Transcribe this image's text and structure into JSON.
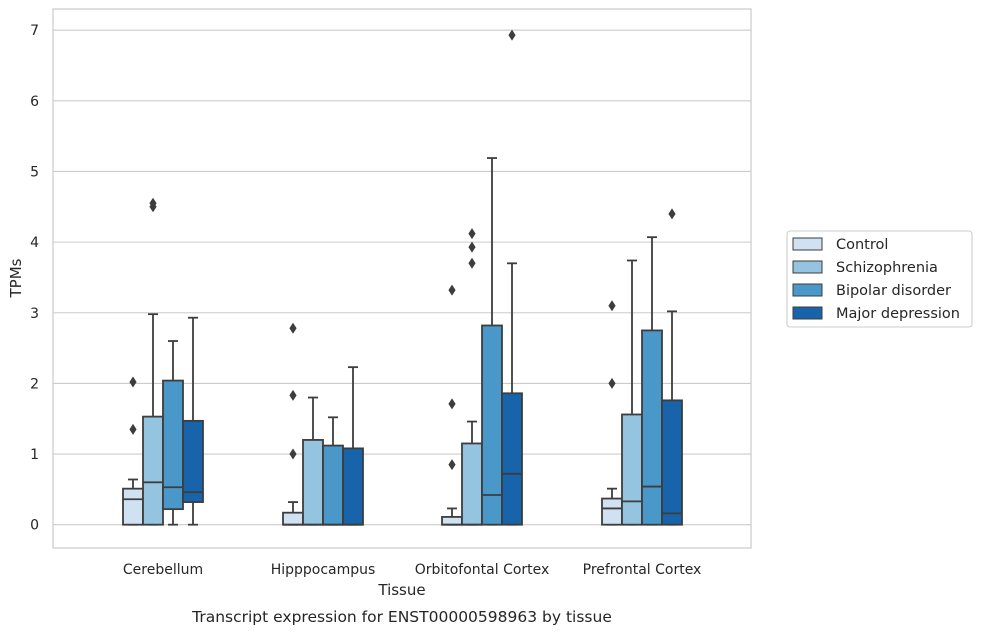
{
  "chart_data": {
    "type": "box",
    "title": "",
    "caption": "Transcript expression for ENST00000598963 by tissue",
    "xlabel": "Tissue",
    "ylabel": "TPMs",
    "ylim": [
      -0.33,
      7.3
    ],
    "yticks": [
      0,
      1,
      2,
      3,
      4,
      5,
      6,
      7
    ],
    "grid": true,
    "legend_position": "right",
    "categories": [
      "Cerebellum",
      "Hipppocampus",
      "Orbitofontal Cortex",
      "Prefrontal Cortex"
    ],
    "series": [
      {
        "name": "Control",
        "color": "#d0e1f2",
        "boxes": [
          {
            "q1": 0.0,
            "median": 0.36,
            "q3": 0.51,
            "whisker_low": 0.0,
            "whisker_high": 0.64,
            "outliers": [
              1.35,
              2.02
            ]
          },
          {
            "q1": 0.0,
            "median": 0.0,
            "q3": 0.17,
            "whisker_low": 0.0,
            "whisker_high": 0.32,
            "outliers": [
              1.0,
              1.83,
              2.78
            ]
          },
          {
            "q1": 0.0,
            "median": 0.0,
            "q3": 0.11,
            "whisker_low": 0.0,
            "whisker_high": 0.23,
            "outliers": [
              0.85,
              1.71,
              3.32
            ]
          },
          {
            "q1": 0.0,
            "median": 0.23,
            "q3": 0.37,
            "whisker_low": 0.0,
            "whisker_high": 0.51,
            "outliers": [
              2.0,
              3.1
            ]
          }
        ]
      },
      {
        "name": "Schizophrenia",
        "color": "#94c4df",
        "boxes": [
          {
            "q1": 0.0,
            "median": 0.6,
            "q3": 1.53,
            "whisker_low": 0.0,
            "whisker_high": 2.98,
            "outliers": [
              4.5,
              4.55
            ]
          },
          {
            "q1": 0.0,
            "median": 0.0,
            "q3": 1.2,
            "whisker_low": 0.0,
            "whisker_high": 1.8,
            "outliers": []
          },
          {
            "q1": 0.0,
            "median": 0.0,
            "q3": 1.15,
            "whisker_low": 0.0,
            "whisker_high": 1.46,
            "outliers": [
              3.7,
              3.93,
              4.12
            ]
          },
          {
            "q1": 0.0,
            "median": 0.33,
            "q3": 1.56,
            "whisker_low": 0.0,
            "whisker_high": 3.74,
            "outliers": []
          }
        ]
      },
      {
        "name": "Bipolar disorder",
        "color": "#4a98c9",
        "boxes": [
          {
            "q1": 0.22,
            "median": 0.53,
            "q3": 2.04,
            "whisker_low": 0.0,
            "whisker_high": 2.6,
            "outliers": []
          },
          {
            "q1": 0.0,
            "median": 0.0,
            "q3": 1.12,
            "whisker_low": 0.0,
            "whisker_high": 1.52,
            "outliers": []
          },
          {
            "q1": 0.0,
            "median": 0.42,
            "q3": 2.82,
            "whisker_low": 0.0,
            "whisker_high": 5.19,
            "outliers": []
          },
          {
            "q1": 0.0,
            "median": 0.54,
            "q3": 2.75,
            "whisker_low": 0.0,
            "whisker_high": 4.07,
            "outliers": []
          }
        ]
      },
      {
        "name": "Major depression",
        "color": "#1764ab",
        "boxes": [
          {
            "q1": 0.32,
            "median": 0.46,
            "q3": 1.47,
            "whisker_low": 0.0,
            "whisker_high": 2.93,
            "outliers": []
          },
          {
            "q1": 0.0,
            "median": 0.0,
            "q3": 1.08,
            "whisker_low": 0.0,
            "whisker_high": 2.23,
            "outliers": []
          },
          {
            "q1": 0.0,
            "median": 0.72,
            "q3": 1.86,
            "whisker_low": 0.0,
            "whisker_high": 3.7,
            "outliers": [
              6.93
            ]
          },
          {
            "q1": 0.0,
            "median": 0.16,
            "q3": 1.76,
            "whisker_low": 0.0,
            "whisker_high": 3.02,
            "outliers": [
              4.4
            ]
          }
        ]
      }
    ]
  }
}
